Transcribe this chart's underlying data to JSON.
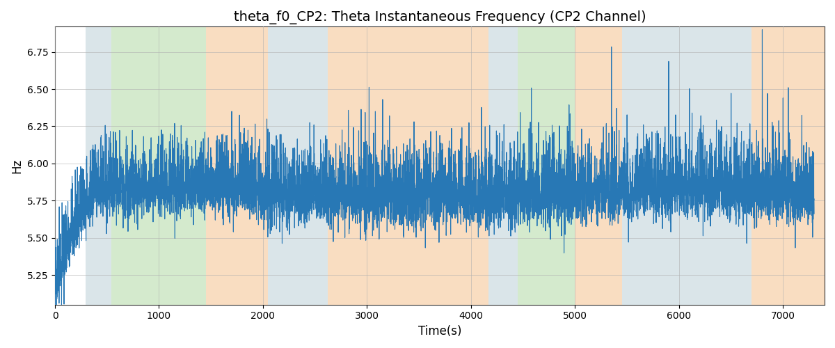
{
  "title": "theta_f0_CP2: Theta Instantaneous Frequency (CP2 Channel)",
  "xlabel": "Time(s)",
  "ylabel": "Hz",
  "ylim": [
    5.05,
    6.92
  ],
  "xlim": [
    0,
    7400
  ],
  "background_color": "#ffffff",
  "line_color": "#2878b5",
  "line_width": 0.8,
  "grid_color": "#b0b0b0",
  "title_fontsize": 14,
  "label_fontsize": 12,
  "colored_bands": [
    {
      "xmin": 295,
      "xmax": 545,
      "color": "#aec6cf",
      "alpha": 0.45
    },
    {
      "xmin": 545,
      "xmax": 1450,
      "color": "#90c97c",
      "alpha": 0.38
    },
    {
      "xmin": 1450,
      "xmax": 2050,
      "color": "#f5c799",
      "alpha": 0.6
    },
    {
      "xmin": 2050,
      "xmax": 2620,
      "color": "#aec6cf",
      "alpha": 0.45
    },
    {
      "xmin": 2620,
      "xmax": 4170,
      "color": "#f5c799",
      "alpha": 0.6
    },
    {
      "xmin": 4170,
      "xmax": 4450,
      "color": "#aec6cf",
      "alpha": 0.45
    },
    {
      "xmin": 4450,
      "xmax": 5000,
      "color": "#90c97c",
      "alpha": 0.38
    },
    {
      "xmin": 5000,
      "xmax": 5450,
      "color": "#f5c799",
      "alpha": 0.6
    },
    {
      "xmin": 5450,
      "xmax": 6700,
      "color": "#aec6cf",
      "alpha": 0.45
    },
    {
      "xmin": 6700,
      "xmax": 7400,
      "color": "#f5c799",
      "alpha": 0.6
    }
  ],
  "signal_seed": 17,
  "n_points": 7300,
  "base_freq": 5.78,
  "noise_scale": 0.085,
  "spike_noise_scale": 0.13
}
